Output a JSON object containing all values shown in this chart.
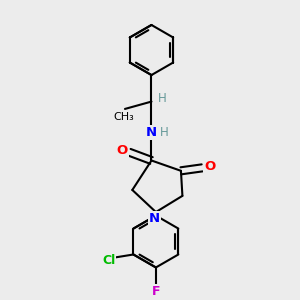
{
  "background_color": "#ececec",
  "bond_color": "#000000",
  "bond_width": 1.5,
  "atom_colors": {
    "N": "#0000ff",
    "O": "#ff0000",
    "Cl": "#00bb00",
    "F": "#cc00cc",
    "H": "#669999",
    "C": "#000000"
  },
  "figsize": [
    3.0,
    3.0
  ],
  "dpi": 100,
  "xlim": [
    0,
    10
  ],
  "ylim": [
    0,
    10
  ]
}
